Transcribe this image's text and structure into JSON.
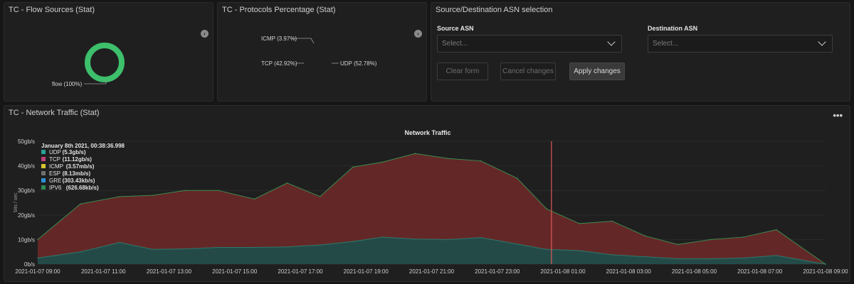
{
  "panels": {
    "flow_sources": {
      "title": "TC - Flow Sources (Stat)"
    },
    "protocols": {
      "title": "TC - Protocols Percentage (Stat)"
    },
    "asn": {
      "title": "Source/Destination ASN selection",
      "source_label": "Source ASN",
      "source_placeholder": "Select...",
      "dest_label": "Destination ASN",
      "dest_placeholder": "Select...",
      "clear": "Clear form",
      "cancel": "Cancel changes",
      "apply": "Apply changes"
    },
    "traffic": {
      "title": "TC - Network Traffic (Stat)"
    }
  },
  "donut_flow": {
    "slices": [
      {
        "label": "flow (100%)",
        "value": 100,
        "color": "#3dbf6b"
      }
    ]
  },
  "donut_protocols": {
    "slices": [
      {
        "label": "UDP (52.78%)",
        "value": 52.78,
        "color": "#6c86d9"
      },
      {
        "label": "TCP (42.92%)",
        "value": 42.92,
        "color": "#5e3aa8"
      },
      {
        "label": "ICMP (3.97%)",
        "value": 3.97,
        "color": "#c94ea0"
      }
    ]
  },
  "chart_data": {
    "type": "area",
    "title": "Network Traffic",
    "ylabel": "bits / sec",
    "ylim": [
      0,
      50
    ],
    "y_ticks": [
      "0b/s",
      "10gb/s",
      "20gb/s",
      "30gb/s",
      "40gb/s",
      "50gb/s"
    ],
    "x_ticks": [
      "2021-01-07 09:00",
      "2021-01-07 11:00",
      "2021-01-07 13:00",
      "2021-01-07 15:00",
      "2021-01-07 17:00",
      "2021-01-07 19:00",
      "2021-01-07 21:00",
      "2021-01-07 23:00",
      "2021-01-08 01:00",
      "2021-01-08 03:00",
      "2021-01-08 05:00",
      "2021-01-08 07:00",
      "2021-01-08 09:00"
    ],
    "x_hours": [
      0,
      1.3,
      2.5,
      3.5,
      4.5,
      5.5,
      6.6,
      7.6,
      8.6,
      9.6,
      10.5,
      11.5,
      12.5,
      13.5,
      14.6,
      15.5,
      16.5,
      17.5,
      18.5,
      19.5,
      20.5,
      21.5,
      22.5,
      24
    ],
    "series": [
      {
        "name": "TCP",
        "color": "#6b2828",
        "values": [
          10,
          24.5,
          27.5,
          28,
          30,
          30,
          26.5,
          33,
          27.5,
          39.5,
          41.5,
          45,
          43,
          42,
          35,
          22.5,
          16.5,
          17.5,
          11.5,
          8,
          10,
          11,
          14,
          0
        ]
      },
      {
        "name": "UDP",
        "color": "#1d4f4c",
        "values": [
          2.5,
          5,
          8.8,
          6,
          6.2,
          6.8,
          6.8,
          7,
          7.8,
          9.2,
          11,
          10.2,
          10,
          10.8,
          8.2,
          6,
          5.5,
          3.8,
          3,
          2.2,
          2.2,
          2.5,
          3.5,
          0
        ]
      }
    ],
    "cursor_hour": 15.65,
    "tooltip": {
      "time": "January 8th 2021, 00:38:36.998",
      "items": [
        {
          "name": "UDP",
          "value": "(5.3gb/s)",
          "color": "#2aa198"
        },
        {
          "name": "TCP",
          "value": "(11.12gb/s)",
          "color": "#c2407a"
        },
        {
          "name": "ICMP",
          "value": "(3.57mb/s)",
          "color": "#d7c430"
        },
        {
          "name": "ESP",
          "value": "(8.13mb/s)",
          "color": "#707070"
        },
        {
          "name": "GRE",
          "value": "(303.43kb/s)",
          "color": "#2d8fd8"
        },
        {
          "name": "IPV6",
          "value": "(626.68kb/s)",
          "color": "#2e8b57"
        }
      ]
    }
  }
}
